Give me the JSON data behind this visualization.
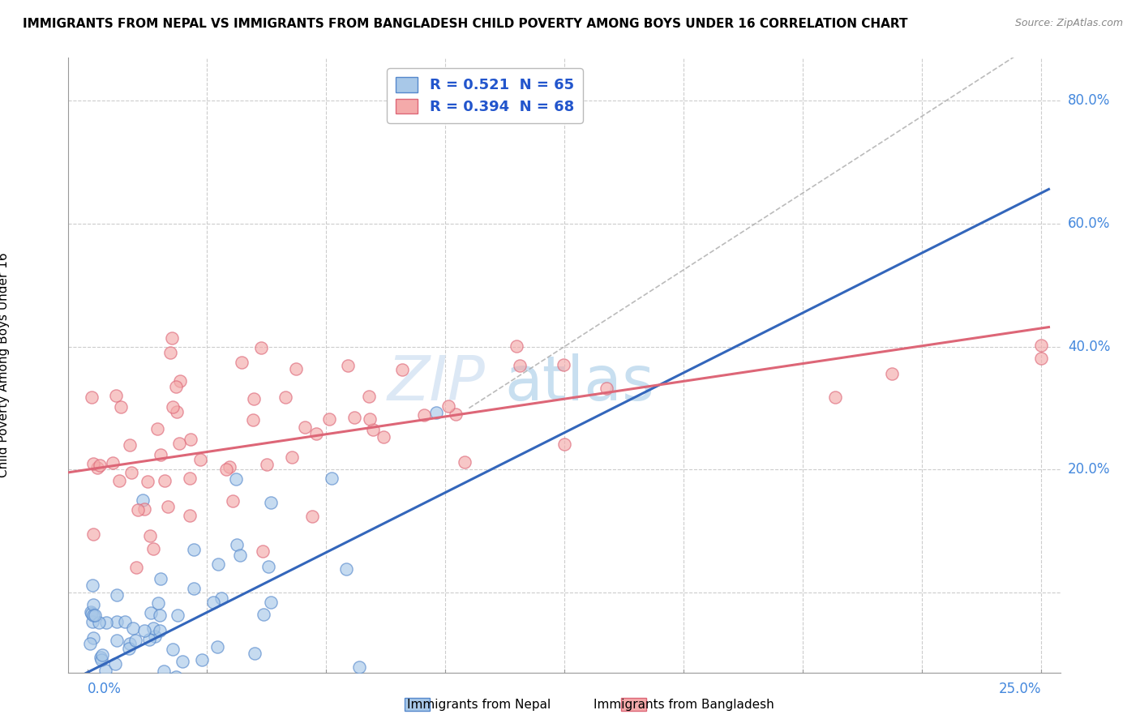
{
  "title": "IMMIGRANTS FROM NEPAL VS IMMIGRANTS FROM BANGLADESH CHILD POVERTY AMONG BOYS UNDER 16 CORRELATION CHART",
  "source": "Source: ZipAtlas.com",
  "ylabel": "Child Poverty Among Boys Under 16",
  "xlim": [
    0.0,
    0.25
  ],
  "ylim": [
    -0.12,
    0.85
  ],
  "nepal_R": 0.521,
  "nepal_N": 65,
  "bangladesh_R": 0.394,
  "bangladesh_N": 68,
  "nepal_color": "#a8c8e8",
  "nepal_edge": "#5588cc",
  "nepal_line_color": "#3366bb",
  "bangladesh_color": "#f4aaaa",
  "bangladesh_edge": "#dd6677",
  "bangladesh_line_color": "#dd6677",
  "grid_color": "#cccccc",
  "gray_line_color": "#aaaaaa",
  "ytick_color": "#4488dd",
  "xtick_color": "#4488dd",
  "watermark_color": "#dce8f5",
  "legend_text_color": "#2255cc"
}
